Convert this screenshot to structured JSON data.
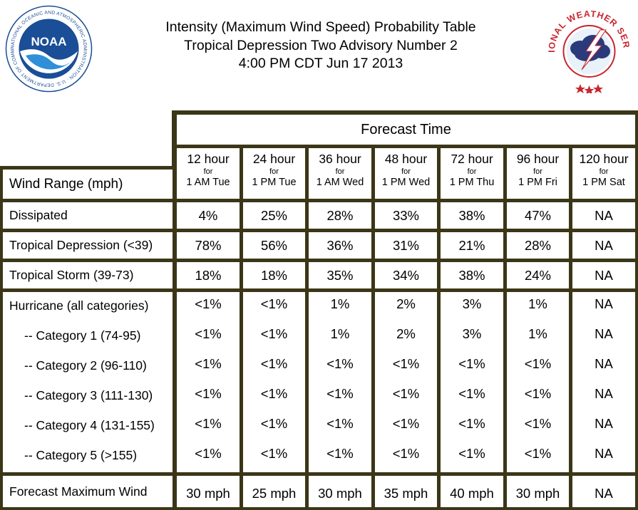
{
  "title": {
    "line1": "Intensity (Maximum Wind Speed) Probability Table",
    "line2": "Tropical Depression Two Advisory Number 2",
    "line3": "4:00 PM CDT Jun 17 2013"
  },
  "logos": {
    "noaa": {
      "center_text": "NOAA",
      "ring_text": "NATIONAL OCEANIC AND ATMOSPHERIC ADMINISTRATION · U.S. DEPARTMENT OF COMMERCE",
      "color": "#1a4e96"
    },
    "nws": {
      "ring_text": "NATIONAL WEATHER SERVICE",
      "color": "#c8262f"
    }
  },
  "table": {
    "forecast_time_label": "Forecast Time",
    "wind_range_label": "Wind Range (mph)",
    "for_label": "for",
    "columns": [
      {
        "hour": "12 hour",
        "when": "1 AM Tue"
      },
      {
        "hour": "24 hour",
        "when": "1 PM Tue"
      },
      {
        "hour": "36 hour",
        "when": "1 AM Wed"
      },
      {
        "hour": "48 hour",
        "when": "1 PM Wed"
      },
      {
        "hour": "72 hour",
        "when": "1 PM Thu"
      },
      {
        "hour": "96 hour",
        "when": "1 PM Fri"
      },
      {
        "hour": "120 hour",
        "when": "1 PM Sat"
      }
    ],
    "groups": [
      {
        "rows": [
          {
            "label": "Dissipated",
            "values": [
              "4%",
              "25%",
              "28%",
              "33%",
              "38%",
              "47%",
              "NA"
            ]
          }
        ]
      },
      {
        "rows": [
          {
            "label": "Tropical Depression (<39)",
            "values": [
              "78%",
              "56%",
              "36%",
              "31%",
              "21%",
              "28%",
              "NA"
            ]
          }
        ]
      },
      {
        "rows": [
          {
            "label": "Tropical Storm (39-73)",
            "values": [
              "18%",
              "18%",
              "35%",
              "34%",
              "38%",
              "24%",
              "NA"
            ]
          }
        ]
      },
      {
        "rows": [
          {
            "label": "Hurricane (all categories)",
            "values": [
              "<1%",
              "<1%",
              "1%",
              "2%",
              "3%",
              "1%",
              "NA"
            ]
          },
          {
            "label": "-- Category 1 (74-95)",
            "values": [
              "<1%",
              "<1%",
              "1%",
              "2%",
              "3%",
              "1%",
              "NA"
            ]
          },
          {
            "label": "-- Category 2 (96-110)",
            "values": [
              "<1%",
              "<1%",
              "<1%",
              "<1%",
              "<1%",
              "<1%",
              "NA"
            ]
          },
          {
            "label": "-- Category 3 (111-130)",
            "values": [
              "<1%",
              "<1%",
              "<1%",
              "<1%",
              "<1%",
              "<1%",
              "NA"
            ]
          },
          {
            "label": "-- Category 4 (131-155)",
            "values": [
              "<1%",
              "<1%",
              "<1%",
              "<1%",
              "<1%",
              "<1%",
              "NA"
            ]
          },
          {
            "label": "-- Category 5 (>155)",
            "values": [
              "<1%",
              "<1%",
              "<1%",
              "<1%",
              "<1%",
              "<1%",
              "NA"
            ]
          }
        ]
      },
      {
        "rows": [
          {
            "label": "Forecast Maximum Wind",
            "values": [
              "30 mph",
              "25 mph",
              "30 mph",
              "35 mph",
              "40 mph",
              "30 mph",
              "NA"
            ]
          }
        ]
      }
    ]
  }
}
